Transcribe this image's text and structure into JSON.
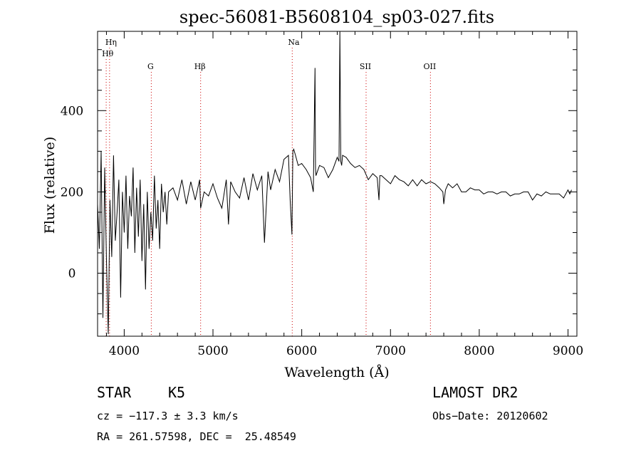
{
  "chart_data": {
    "type": "line",
    "title": "spec-56081-B5608104_sp03-027.fits",
    "xlabel": "Wavelength (Å)",
    "ylabel": "Flux (relative)",
    "xlim": [
      3700,
      9100
    ],
    "ylim": [
      -155,
      595
    ],
    "x_ticks": [
      4000,
      5000,
      6000,
      7000,
      8000,
      9000
    ],
    "y_ticks": [
      0,
      200,
      400
    ],
    "grid": false,
    "line_color": "#000000",
    "marker_color": "#cc0000",
    "lines": [
      {
        "name": "Hη",
        "wavelength": 3835,
        "row": 1
      },
      {
        "name": "Hθ",
        "wavelength": 3797,
        "row": 2
      },
      {
        "name": "G",
        "wavelength": 4305,
        "row": 3
      },
      {
        "name": "Hβ",
        "wavelength": 4861,
        "row": 3
      },
      {
        "name": "Na",
        "wavelength": 5893,
        "row": 1
      },
      {
        "name": "SII",
        "wavelength": 6725,
        "row": 3
      },
      {
        "name": "OII",
        "wavelength": 7450,
        "row": 3
      }
    ],
    "series": [
      {
        "x": [
          3700,
          3720,
          3740,
          3760,
          3780,
          3800,
          3820,
          3840,
          3860,
          3880,
          3900,
          3920,
          3940,
          3960,
          3980,
          4000,
          4020,
          4040,
          4060,
          4080,
          4100,
          4120,
          4140,
          4160,
          4180,
          4200,
          4220,
          4240,
          4260,
          4280,
          4300,
          4320,
          4340,
          4360,
          4380,
          4400,
          4420,
          4440,
          4460,
          4480,
          4500,
          4550,
          4600,
          4650,
          4700,
          4750,
          4800,
          4850,
          4861,
          4900,
          4950,
          5000,
          5050,
          5100,
          5150,
          5175,
          5200,
          5250,
          5300,
          5350,
          5400,
          5450,
          5500,
          5550,
          5580,
          5620,
          5650,
          5700,
          5750,
          5800,
          5850,
          5870,
          5890,
          5900,
          5910,
          5930,
          5960,
          6000,
          6050,
          6100,
          6130,
          6150,
          6155,
          6160,
          6200,
          6250,
          6300,
          6350,
          6400,
          6420,
          6430,
          6440,
          6450,
          6460,
          6500,
          6550,
          6600,
          6650,
          6700,
          6750,
          6800,
          6850,
          6870,
          6880,
          6900,
          6950,
          7000,
          7050,
          7100,
          7150,
          7200,
          7250,
          7300,
          7350,
          7400,
          7450,
          7500,
          7550,
          7590,
          7600,
          7620,
          7650,
          7700,
          7750,
          7800,
          7850,
          7900,
          7950,
          8000,
          8050,
          8100,
          8150,
          8200,
          8250,
          8300,
          8350,
          8400,
          8450,
          8500,
          8550,
          8600,
          8650,
          8700,
          8750,
          8800,
          8850,
          8900,
          8950,
          9000,
          9020,
          9040
        ],
        "y": [
          170,
          60,
          300,
          -110,
          260,
          30,
          -150,
          180,
          40,
          290,
          80,
          150,
          230,
          -60,
          200,
          100,
          240,
          60,
          190,
          140,
          260,
          50,
          210,
          90,
          230,
          30,
          170,
          -40,
          200,
          60,
          150,
          80,
          240,
          110,
          180,
          60,
          220,
          150,
          200,
          120,
          200,
          210,
          180,
          230,
          170,
          225,
          180,
          230,
          160,
          200,
          190,
          220,
          185,
          160,
          230,
          120,
          225,
          200,
          185,
          235,
          180,
          245,
          205,
          240,
          75,
          250,
          205,
          255,
          225,
          280,
          290,
          180,
          95,
          300,
          305,
          290,
          265,
          270,
          255,
          235,
          200,
          505,
          260,
          240,
          265,
          260,
          235,
          255,
          285,
          275,
          600,
          275,
          265,
          290,
          285,
          270,
          260,
          265,
          255,
          230,
          245,
          235,
          180,
          240,
          240,
          230,
          220,
          240,
          230,
          225,
          215,
          230,
          215,
          230,
          220,
          225,
          220,
          210,
          200,
          170,
          205,
          220,
          210,
          220,
          200,
          200,
          210,
          205,
          205,
          195,
          200,
          200,
          195,
          200,
          200,
          190,
          195,
          195,
          200,
          200,
          180,
          195,
          190,
          200,
          195,
          195,
          195,
          185,
          205,
          195,
          205
        ]
      }
    ]
  },
  "info": {
    "object_class": "STAR",
    "subclass": "K5",
    "survey": "LAMOST DR2",
    "cz": "cz = −117.3 ± 3.3 km/s",
    "obs_date": "Obs−Date: 20120602",
    "coords": "RA = 261.57598, DEC =  25.48549"
  }
}
